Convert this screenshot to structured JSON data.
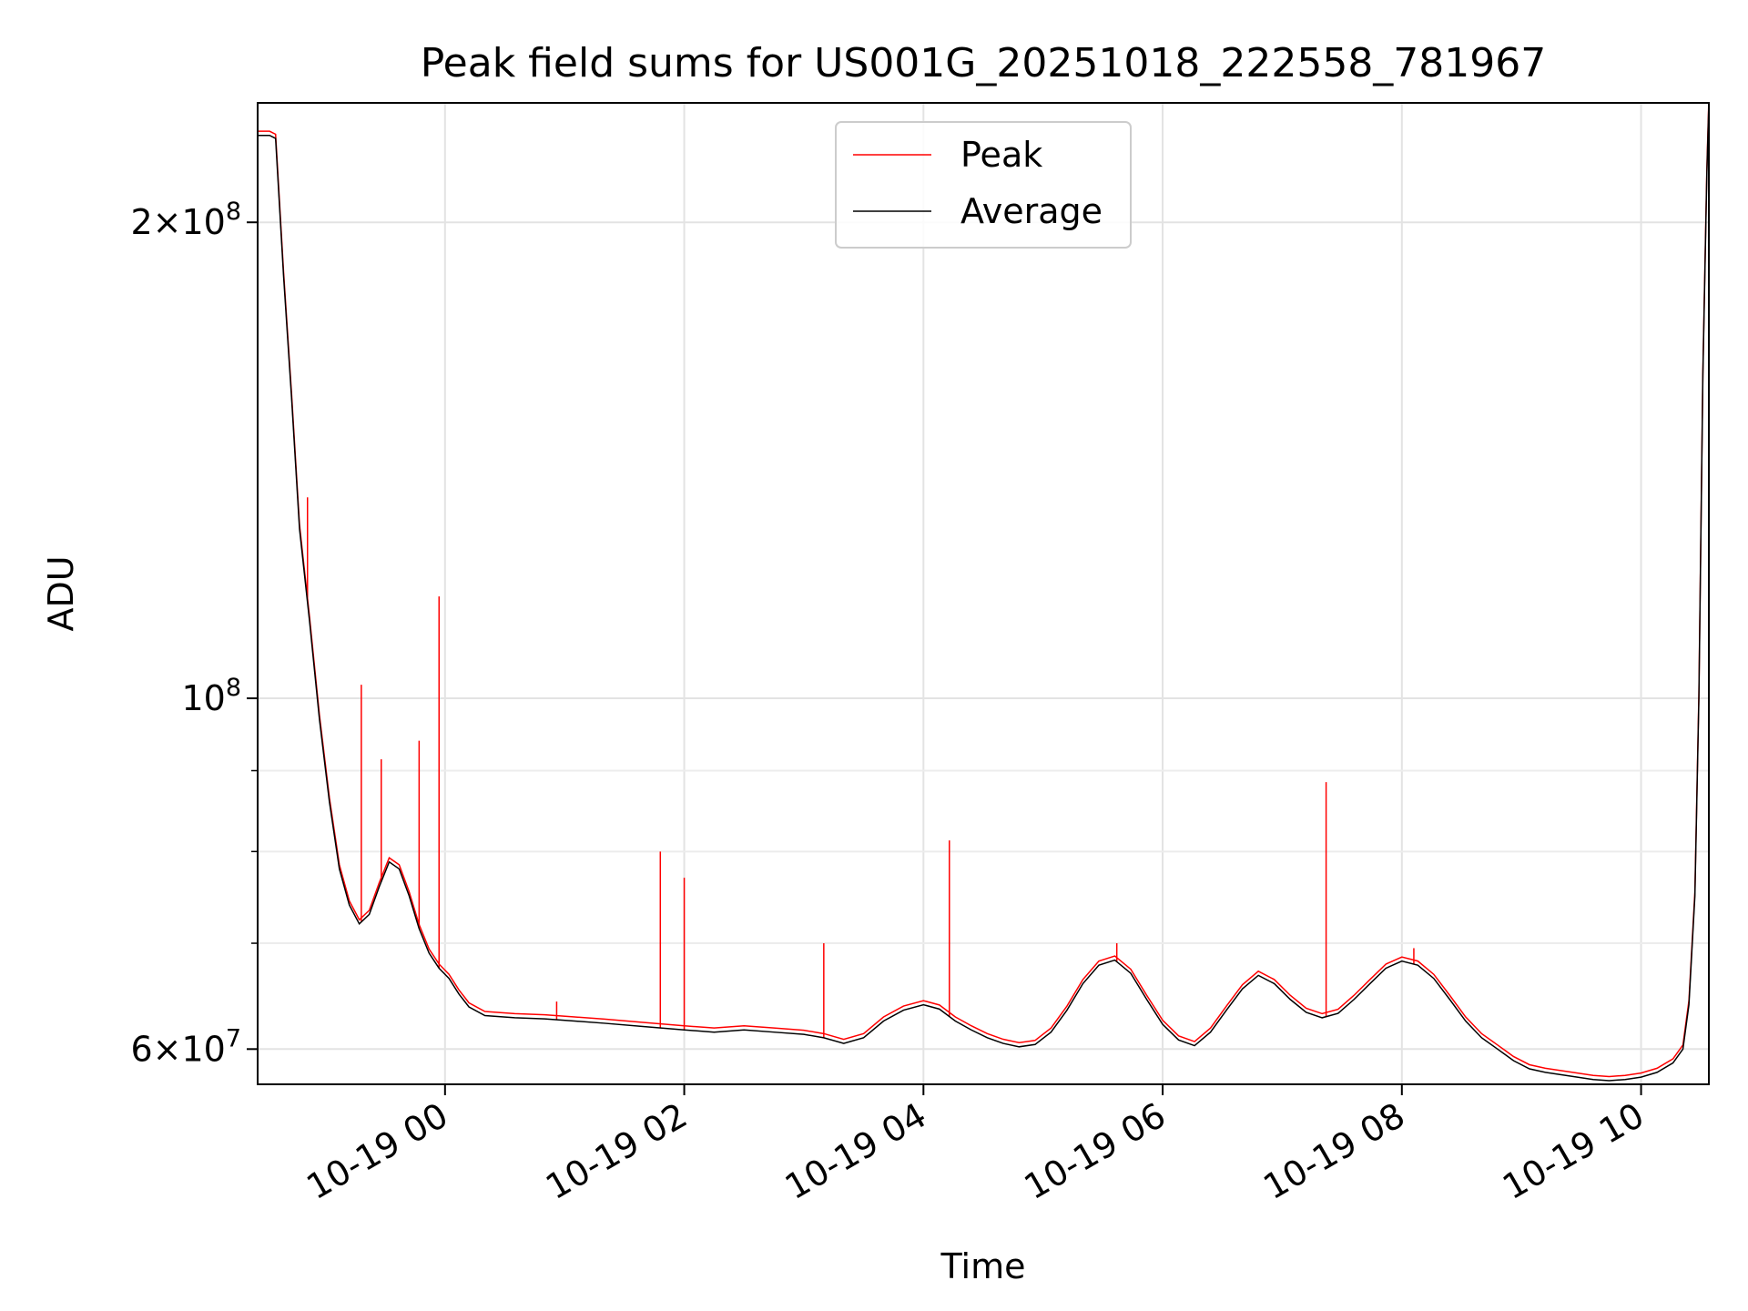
{
  "chart_data": {
    "type": "line",
    "title": "Peak field sums for US001G_20251018_222558_781967",
    "xlabel": "Time",
    "ylabel": "ADU",
    "y_scale": "log",
    "grid": true,
    "legend_position": "upper center",
    "x_range": [
      "2025-10-18T22:26",
      "2025-10-19T10:34"
    ],
    "ylim": [
      57000000,
      238000000
    ],
    "x_ticks": [
      {
        "value": "2025-10-19T00:00",
        "label": "10-19 00"
      },
      {
        "value": "2025-10-19T02:00",
        "label": "10-19 02"
      },
      {
        "value": "2025-10-19T04:00",
        "label": "10-19 04"
      },
      {
        "value": "2025-10-19T06:00",
        "label": "10-19 06"
      },
      {
        "value": "2025-10-19T08:00",
        "label": "10-19 08"
      },
      {
        "value": "2025-10-19T10:00",
        "label": "10-19 10"
      }
    ],
    "y_ticks": [
      {
        "value": 60000000,
        "base": "6×10",
        "exp": "7"
      },
      {
        "value": 100000000,
        "base": "10",
        "exp": "8"
      },
      {
        "value": 200000000,
        "base": "2×10",
        "exp": "8"
      }
    ],
    "y_minor_ticks": [
      70000000,
      80000000,
      90000000
    ],
    "series": [
      {
        "name": "Average",
        "color": "#000000",
        "points": [
          [
            "2025-10-18T22:26",
            227000000
          ],
          [
            "2025-10-18T22:32",
            227000000
          ],
          [
            "2025-10-18T22:35",
            226000000
          ],
          [
            "2025-10-18T22:39",
            185000000
          ],
          [
            "2025-10-18T22:43",
            155000000
          ],
          [
            "2025-10-18T22:47",
            128000000
          ],
          [
            "2025-10-18T22:52",
            112000000
          ],
          [
            "2025-10-18T22:57",
            97000000
          ],
          [
            "2025-10-18T23:02",
            86000000
          ],
          [
            "2025-10-18T23:07",
            78000000
          ],
          [
            "2025-10-18T23:12",
            74000000
          ],
          [
            "2025-10-18T23:17",
            72000000
          ],
          [
            "2025-10-18T23:22",
            73000000
          ],
          [
            "2025-10-18T23:27",
            76000000
          ],
          [
            "2025-10-18T23:32",
            78800000
          ],
          [
            "2025-10-18T23:37",
            78000000
          ],
          [
            "2025-10-18T23:42",
            75000000
          ],
          [
            "2025-10-18T23:47",
            71500000
          ],
          [
            "2025-10-18T23:52",
            69000000
          ],
          [
            "2025-10-18T23:57",
            67500000
          ],
          [
            "2025-10-19T00:02",
            66500000
          ],
          [
            "2025-10-19T00:07",
            65000000
          ],
          [
            "2025-10-19T00:12",
            63800000
          ],
          [
            "2025-10-19T00:20",
            63000000
          ],
          [
            "2025-10-19T00:35",
            62800000
          ],
          [
            "2025-10-19T00:50",
            62700000
          ],
          [
            "2025-10-19T01:05",
            62500000
          ],
          [
            "2025-10-19T01:20",
            62300000
          ],
          [
            "2025-10-19T01:40",
            62000000
          ],
          [
            "2025-10-19T02:00",
            61700000
          ],
          [
            "2025-10-19T02:15",
            61500000
          ],
          [
            "2025-10-19T02:30",
            61700000
          ],
          [
            "2025-10-19T02:45",
            61500000
          ],
          [
            "2025-10-19T03:00",
            61300000
          ],
          [
            "2025-10-19T03:10",
            61000000
          ],
          [
            "2025-10-19T03:20",
            60500000
          ],
          [
            "2025-10-19T03:30",
            61000000
          ],
          [
            "2025-10-19T03:40",
            62500000
          ],
          [
            "2025-10-19T03:50",
            63500000
          ],
          [
            "2025-10-19T04:00",
            64000000
          ],
          [
            "2025-10-19T04:08",
            63600000
          ],
          [
            "2025-10-19T04:16",
            62500000
          ],
          [
            "2025-10-19T04:24",
            61700000
          ],
          [
            "2025-10-19T04:32",
            61000000
          ],
          [
            "2025-10-19T04:40",
            60500000
          ],
          [
            "2025-10-19T04:48",
            60200000
          ],
          [
            "2025-10-19T04:56",
            60400000
          ],
          [
            "2025-10-19T05:04",
            61500000
          ],
          [
            "2025-10-19T05:12",
            63500000
          ],
          [
            "2025-10-19T05:20",
            66000000
          ],
          [
            "2025-10-19T05:28",
            67800000
          ],
          [
            "2025-10-19T05:36",
            68300000
          ],
          [
            "2025-10-19T05:44",
            67000000
          ],
          [
            "2025-10-19T05:52",
            64500000
          ],
          [
            "2025-10-19T06:00",
            62200000
          ],
          [
            "2025-10-19T06:08",
            60800000
          ],
          [
            "2025-10-19T06:16",
            60300000
          ],
          [
            "2025-10-19T06:24",
            61500000
          ],
          [
            "2025-10-19T06:32",
            63500000
          ],
          [
            "2025-10-19T06:40",
            65500000
          ],
          [
            "2025-10-19T06:48",
            66800000
          ],
          [
            "2025-10-19T06:56",
            66000000
          ],
          [
            "2025-10-19T07:04",
            64500000
          ],
          [
            "2025-10-19T07:12",
            63300000
          ],
          [
            "2025-10-19T07:20",
            62800000
          ],
          [
            "2025-10-19T07:28",
            63200000
          ],
          [
            "2025-10-19T07:36",
            64500000
          ],
          [
            "2025-10-19T07:44",
            66000000
          ],
          [
            "2025-10-19T07:52",
            67500000
          ],
          [
            "2025-10-19T08:00",
            68200000
          ],
          [
            "2025-10-19T08:08",
            67800000
          ],
          [
            "2025-10-19T08:16",
            66500000
          ],
          [
            "2025-10-19T08:24",
            64500000
          ],
          [
            "2025-10-19T08:32",
            62500000
          ],
          [
            "2025-10-19T08:40",
            61000000
          ],
          [
            "2025-10-19T08:48",
            60000000
          ],
          [
            "2025-10-19T08:56",
            59000000
          ],
          [
            "2025-10-19T09:04",
            58300000
          ],
          [
            "2025-10-19T09:12",
            58000000
          ],
          [
            "2025-10-19T09:20",
            57800000
          ],
          [
            "2025-10-19T09:28",
            57600000
          ],
          [
            "2025-10-19T09:36",
            57400000
          ],
          [
            "2025-10-19T09:44",
            57300000
          ],
          [
            "2025-10-19T09:52",
            57400000
          ],
          [
            "2025-10-19T10:00",
            57600000
          ],
          [
            "2025-10-19T10:08",
            58000000
          ],
          [
            "2025-10-19T10:16",
            58800000
          ],
          [
            "2025-10-19T10:21",
            60000000
          ],
          [
            "2025-10-19T10:24",
            64000000
          ],
          [
            "2025-10-19T10:27",
            75000000
          ],
          [
            "2025-10-19T10:29",
            100000000
          ],
          [
            "2025-10-19T10:31",
            160000000
          ],
          [
            "2025-10-19T10:33",
            215000000
          ],
          [
            "2025-10-19T10:34",
            238000000
          ]
        ]
      },
      {
        "name": "Peak",
        "color": "#ff0000",
        "spikes": [
          [
            "2025-10-18T22:51",
            134000000
          ],
          [
            "2025-10-18T23:18",
            102000000
          ],
          [
            "2025-10-18T23:28",
            91500000
          ],
          [
            "2025-10-18T23:47",
            94000000
          ],
          [
            "2025-10-18T23:57",
            116000000
          ],
          [
            "2025-10-19T00:56",
            64300000
          ],
          [
            "2025-10-19T01:48",
            80000000
          ],
          [
            "2025-10-19T02:00",
            77000000
          ],
          [
            "2025-10-19T03:10",
            70000000
          ],
          [
            "2025-10-19T04:13",
            81300000
          ],
          [
            "2025-10-19T05:37",
            70000000
          ],
          [
            "2025-10-19T07:22",
            88500000
          ],
          [
            "2025-10-19T08:06",
            69500000
          ]
        ]
      }
    ]
  }
}
